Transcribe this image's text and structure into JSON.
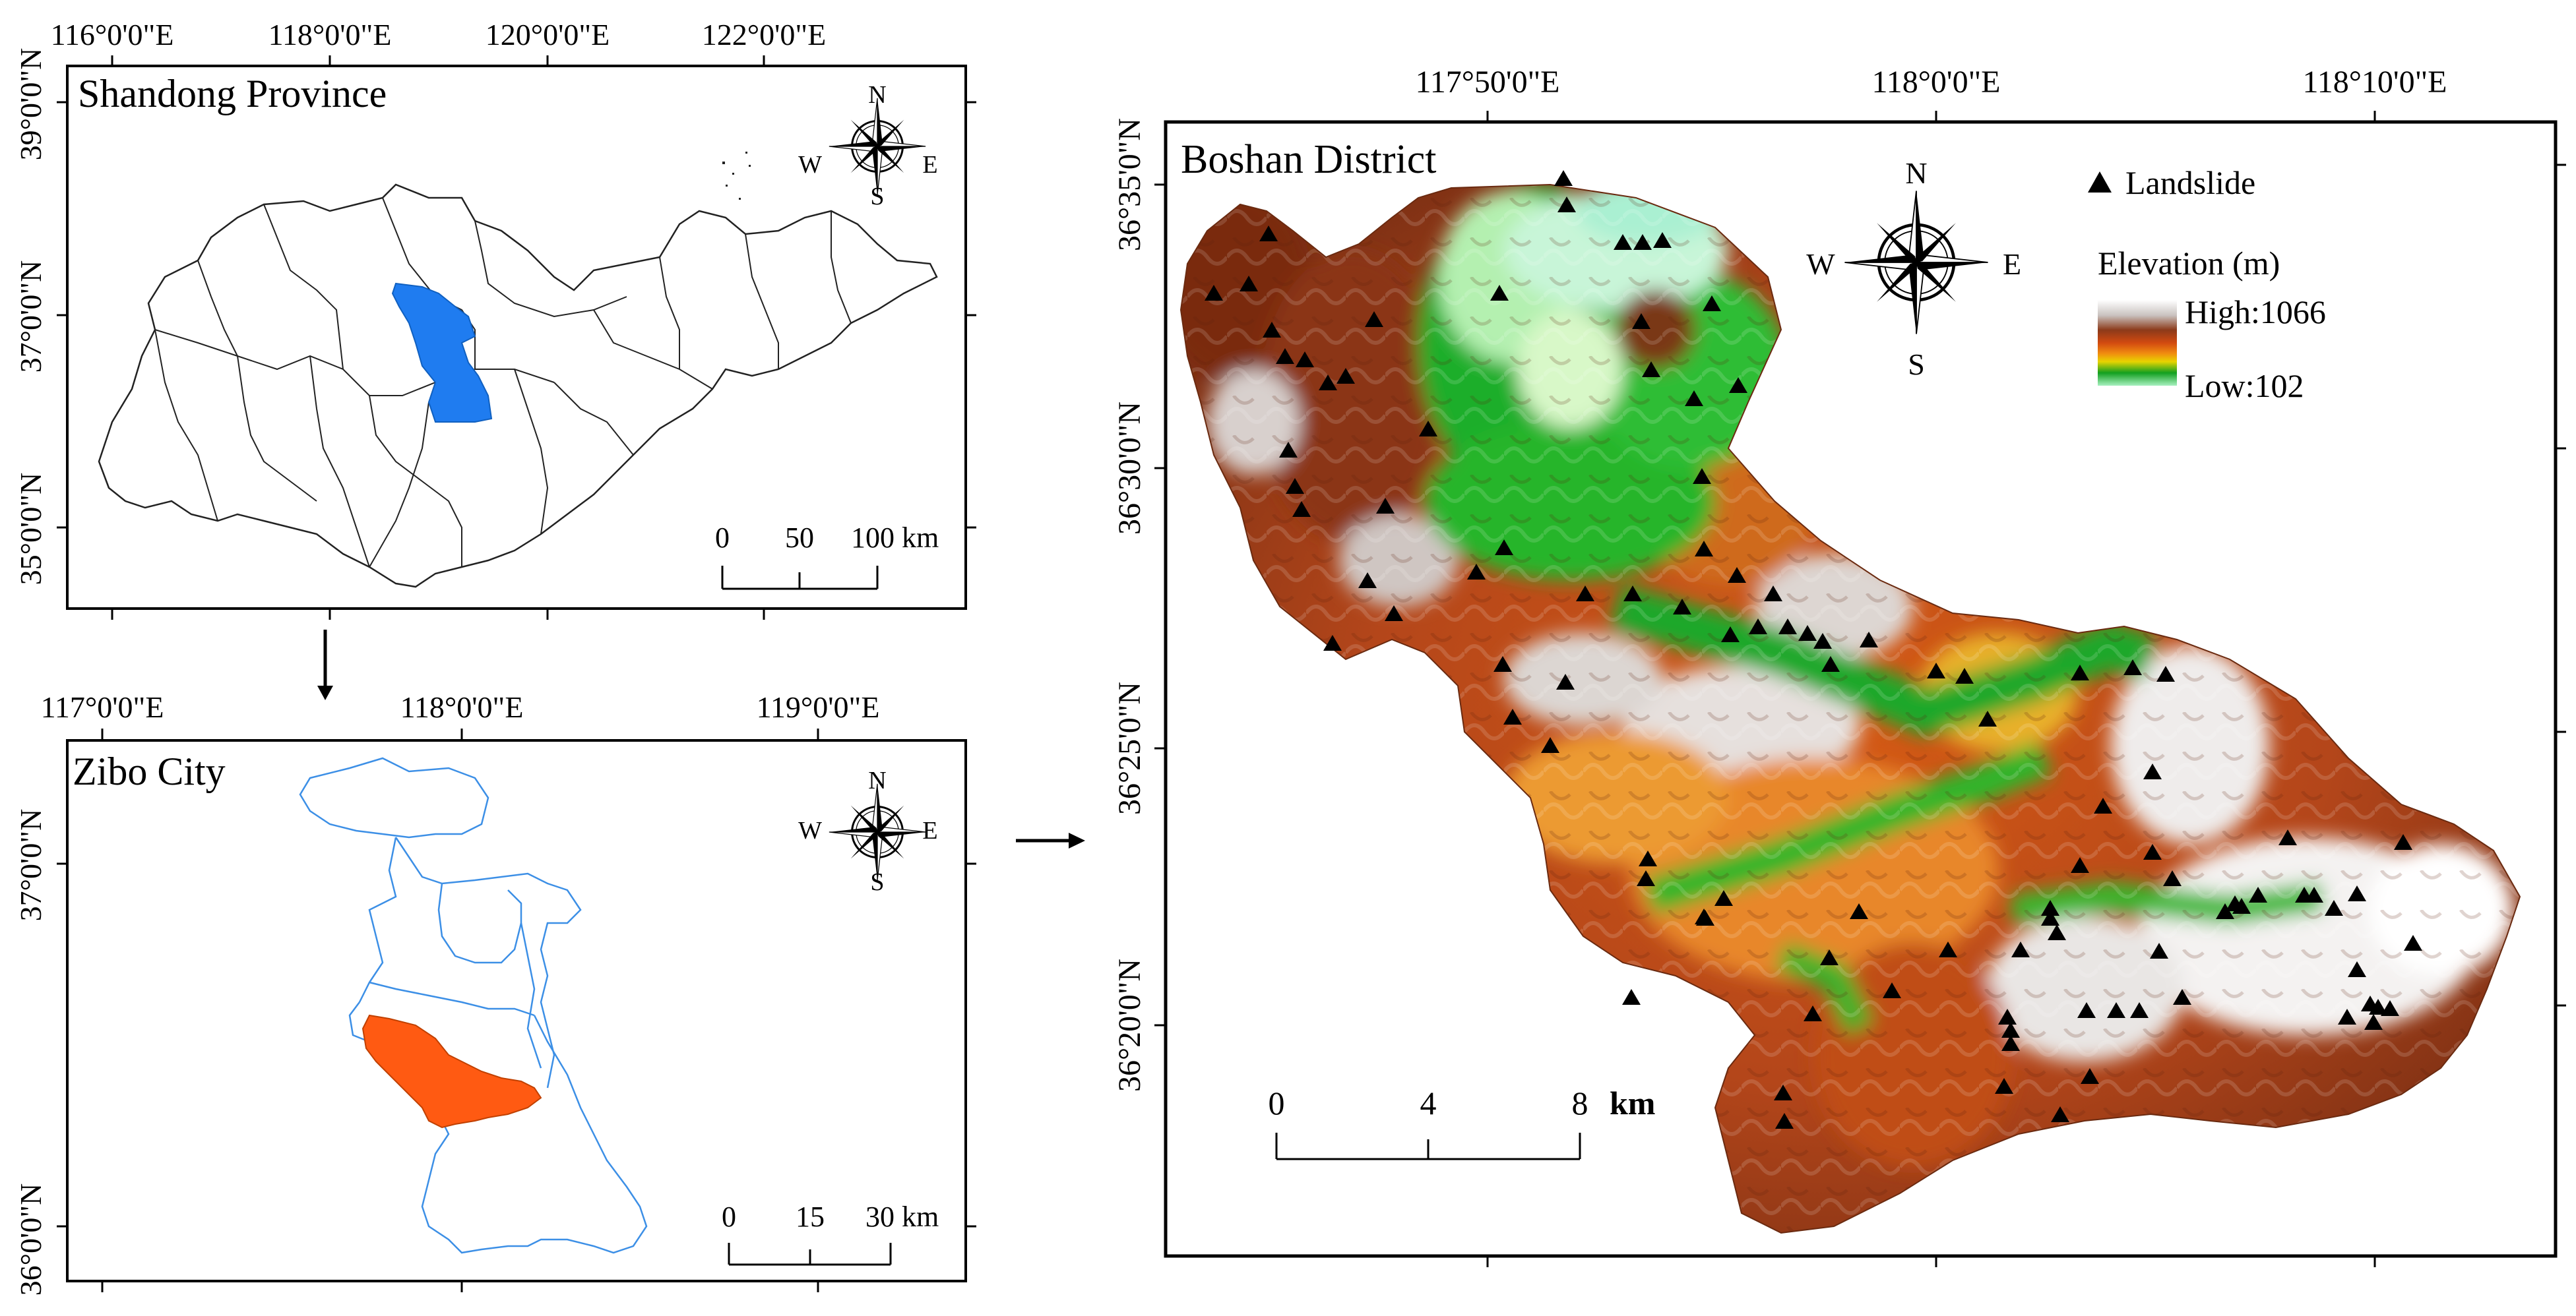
{
  "shandong": {
    "title": "Shandong Province",
    "lon_ticks": [
      "116°0'0\"E",
      "118°0'0\"E",
      "120°0'0\"E",
      "122°0'0\"E"
    ],
    "lat_ticks": [
      "39°0'0\"N",
      "37°0'0\"N",
      "35°0'0\"N"
    ],
    "scale_labels": [
      "0",
      "50",
      "100 km"
    ],
    "highlight_color": "#1f7cf0"
  },
  "zibo": {
    "title": "Zibo City",
    "lon_ticks": [
      "117°0'0\"E",
      "118°0'0\"E",
      "119°0'0\"E"
    ],
    "lat_ticks": [
      "37°0'0\"N",
      "36°0'0\"N"
    ],
    "scale_labels": [
      "0",
      "15",
      "30 km"
    ],
    "highlight_color": "#ff5a12",
    "boundary_color": "#3c8fe6"
  },
  "boshan": {
    "title": "Boshan District",
    "lon_ticks": [
      "117°50'0\"E",
      "118°0'0\"E",
      "118°10'0\"E"
    ],
    "lat_ticks": [
      "36°35'0\"N",
      "36°30'0\"N",
      "36°25'0\"N",
      "36°20'0\"N"
    ],
    "scale_labels": [
      "0",
      "4",
      "8"
    ],
    "scale_unit": "km",
    "legend": {
      "landslide": "Landslide",
      "elevation_title": "Elevation (m)",
      "high": "High:1066",
      "low": "Low:102",
      "ramp_colors": [
        "#ffffff",
        "#c9c2bf",
        "#8c3a1a",
        "#d24a10",
        "#f08a10",
        "#e8d400",
        "#12a020",
        "#a8f0c0"
      ]
    }
  },
  "compass": {
    "n": "N",
    "s": "S",
    "e": "E",
    "w": "W"
  }
}
